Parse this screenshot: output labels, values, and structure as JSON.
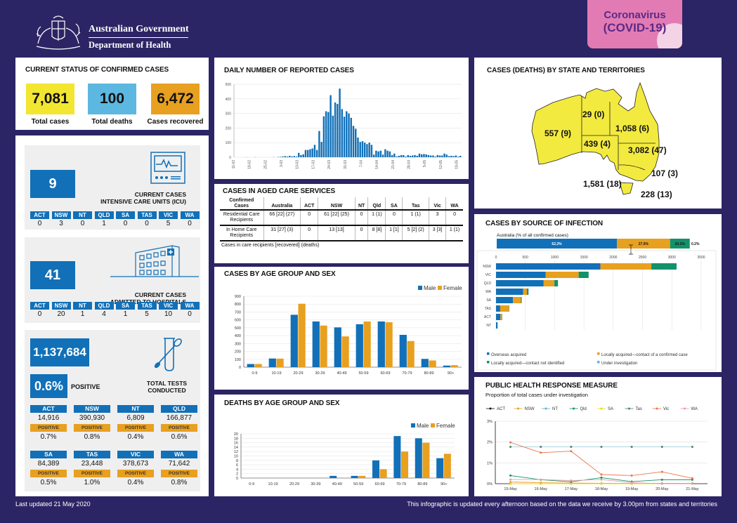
{
  "header": {
    "gov": "Australian Government",
    "dept": "Department of Health",
    "badge_line1": "Coronavirus",
    "badge_line2": "(COVID-19)"
  },
  "status": {
    "title": "CURRENT STATUS OF CONFIRMED CASES",
    "total_cases": "7,081",
    "total_cases_label": "Total cases",
    "total_deaths": "100",
    "total_deaths_label": "Total deaths",
    "recovered": "6,472",
    "recovered_label": "Cases recovered"
  },
  "colors": {
    "background": "#2b2565",
    "blue": "#1170b8",
    "yellow": "#f2e631",
    "light_blue": "#5cb8e0",
    "orange": "#e8a020",
    "map_fill": "#f3ea3f",
    "badge": "#e27bb4"
  },
  "icu": {
    "value": "9",
    "caption1": "CURRENT CASES",
    "caption2": "INTENSIVE CARE UNITS (ICU)",
    "states": [
      {
        "s": "ACT",
        "v": "0"
      },
      {
        "s": "NSW",
        "v": "3"
      },
      {
        "s": "NT",
        "v": "0"
      },
      {
        "s": "QLD",
        "v": "1"
      },
      {
        "s": "SA",
        "v": "0"
      },
      {
        "s": "TAS",
        "v": "0"
      },
      {
        "s": "VIC",
        "v": "5"
      },
      {
        "s": "WA",
        "v": "0"
      }
    ]
  },
  "hospital": {
    "value": "41",
    "caption1": "CURRENT CASES",
    "caption2": "ADMITTED TO HOSPITALS",
    "states": [
      {
        "s": "ACT",
        "v": "0"
      },
      {
        "s": "NSW",
        "v": "20"
      },
      {
        "s": "NT",
        "v": "1"
      },
      {
        "s": "QLD",
        "v": "4"
      },
      {
        "s": "SA",
        "v": "1"
      },
      {
        "s": "TAS",
        "v": "5"
      },
      {
        "s": "VIC",
        "v": "10"
      },
      {
        "s": "WA",
        "v": "0"
      }
    ]
  },
  "tests": {
    "value": "1,137,684",
    "positive": "0.6%",
    "positive_label": "POSITIVE",
    "caption1": "TOTAL TESTS",
    "caption2": "CONDUCTED",
    "positive_tag": "POSITIVE",
    "states": [
      {
        "s": "ACT",
        "v": "14,916",
        "p": "0.7%"
      },
      {
        "s": "NSW",
        "v": "390,930",
        "p": "0.8%"
      },
      {
        "s": "NT",
        "v": "6,809",
        "p": "0.4%"
      },
      {
        "s": "QLD",
        "v": "166,877",
        "p": "0.6%"
      },
      {
        "s": "SA",
        "v": "84,389",
        "p": "0.5%"
      },
      {
        "s": "TAS",
        "v": "23,448",
        "p": "1.0%"
      },
      {
        "s": "VIC",
        "v": "378,673",
        "p": "0.4%"
      },
      {
        "s": "WA",
        "v": "71,642",
        "p": "0.8%"
      }
    ]
  },
  "aged": {
    "title": "CASES IN AGED CARE SERVICES",
    "headers": [
      "Confirmed Cases",
      "Australia",
      "ACT",
      "NSW",
      "NT",
      "Qld",
      "SA",
      "Tas",
      "Vic",
      "WA"
    ],
    "rows": [
      {
        "label": "Residential Care Recipients",
        "cells": [
          "66 [22] (27)",
          "0",
          "61 [22] (25)",
          "0",
          "1 (1)",
          "0",
          "1 (1)",
          "3",
          "0"
        ]
      },
      {
        "label": "In Home Care Recipients",
        "cells": [
          "31 [27] (3)",
          "0",
          "13 [13]",
          "0",
          "8 [8]",
          "1 [1]",
          "5 [2] (2)",
          "3 [3]",
          "1 (1)"
        ]
      }
    ],
    "footnote": "Cases in care recipients [recovered] (deaths)"
  },
  "map": {
    "title": "CASES (DEATHS) BY STATE AND TERRITORIES",
    "states": [
      {
        "s": "WA",
        "label": "557 (9)"
      },
      {
        "s": "NT",
        "label": "29 (0)"
      },
      {
        "s": "QLD",
        "label": "1,058 (6)"
      },
      {
        "s": "SA",
        "label": "439 (4)"
      },
      {
        "s": "NSW",
        "label": "3,082 (47)"
      },
      {
        "s": "ACT",
        "label": "107 (3)"
      },
      {
        "s": "VIC",
        "label": "1,581 (18)"
      },
      {
        "s": "TAS",
        "label": "228 (13)"
      }
    ]
  },
  "footer": {
    "updated": "Last updated 21 May 2020",
    "note": "This infographic is updated every afternoon based on the data we receive by 3.00pm from states and territories"
  },
  "chart_data": [
    {
      "id": "daily",
      "type": "bar",
      "title": "DAILY NUMBER OF REPORTED CASES",
      "ylim": [
        0,
        500
      ],
      "yticks": [
        0,
        100,
        200,
        300,
        400,
        500
      ],
      "grid": true,
      "color": "#1170b8",
      "x": [
        "11-02",
        "12-02",
        "13-02",
        "14-02",
        "15-02",
        "16-02",
        "17-02",
        "18-02",
        "19-02",
        "20-02",
        "21-02",
        "22-02",
        "23-02",
        "24-02",
        "25-02",
        "26-02",
        "27-02",
        "28-02",
        "29-02",
        "1-03",
        "2-03",
        "3-03",
        "4-03",
        "5-03",
        "6-03",
        "7-03",
        "8-03",
        "9-03",
        "10-03",
        "11-03",
        "12-03",
        "13-03",
        "14-03",
        "15-03",
        "16-03",
        "17-03",
        "18-03",
        "19-03",
        "20-03",
        "21-03",
        "22-03",
        "23-03",
        "24-03",
        "25-03",
        "26-03",
        "27-03",
        "28-03",
        "29-03",
        "30-03",
        "31-03",
        "1-04",
        "2-04",
        "3-04",
        "4-04",
        "5-04",
        "6-04",
        "7-04",
        "8-04",
        "9-04",
        "10-04",
        "11-04",
        "12-04",
        "13-04",
        "14-04",
        "15-04",
        "16-04",
        "17-04",
        "18-04",
        "19-04",
        "20-04",
        "21-04",
        "22-04",
        "23-04",
        "24-04",
        "25-04",
        "26-04",
        "27-04",
        "28-04",
        "29-04",
        "30-04",
        "1-05",
        "2-05",
        "3-05",
        "4-05",
        "5-05",
        "6-05",
        "7-05",
        "8-05",
        "9-05",
        "10-05",
        "11-05",
        "12-05",
        "13-05",
        "14-05",
        "15-05",
        "16-05",
        "17-05",
        "18-05",
        "19-05",
        "20-05"
      ],
      "values": [
        0,
        0,
        0,
        0,
        0,
        1,
        0,
        0,
        0,
        1,
        0,
        0,
        0,
        0,
        0,
        0,
        0,
        1,
        0,
        2,
        3,
        5,
        8,
        5,
        10,
        6,
        8,
        5,
        30,
        15,
        20,
        50,
        50,
        55,
        60,
        85,
        50,
        180,
        105,
        280,
        315,
        310,
        425,
        285,
        375,
        365,
        470,
        330,
        278,
        315,
        300,
        270,
        215,
        195,
        135,
        105,
        110,
        100,
        90,
        100,
        85,
        18,
        45,
        40,
        45,
        18,
        55,
        45,
        40,
        15,
        25,
        5,
        10,
        15,
        15,
        5,
        15,
        10,
        12,
        15,
        10,
        25,
        20,
        22,
        20,
        15,
        12,
        12,
        5,
        15,
        12,
        12,
        25,
        18,
        8,
        10,
        8,
        12,
        5,
        10
      ],
      "xticks": [
        "11-02",
        "18-02",
        "25-02",
        "3-03",
        "10-03",
        "17-03",
        "24-03",
        "31-03",
        "7-04",
        "14-04",
        "21-04",
        "28-04",
        "5-05",
        "12-05",
        "19-05"
      ]
    },
    {
      "id": "age",
      "type": "bar",
      "title": "CASES BY AGE GROUP AND SEX",
      "ylim": [
        0,
        900
      ],
      "yticks": [
        0,
        100,
        200,
        300,
        400,
        500,
        600,
        700,
        800,
        900
      ],
      "legend": "top-right",
      "categories": [
        "0-9",
        "10-19",
        "20-29",
        "30-39",
        "40-49",
        "50-59",
        "60-69",
        "70-79",
        "80-89",
        "90+"
      ],
      "series": [
        {
          "name": "Male",
          "color": "#1170b8",
          "values": [
            40,
            110,
            665,
            580,
            505,
            545,
            580,
            410,
            105,
            20
          ]
        },
        {
          "name": "Female",
          "color": "#e8a020",
          "values": [
            40,
            108,
            805,
            528,
            390,
            580,
            570,
            332,
            85,
            25
          ]
        }
      ]
    },
    {
      "id": "deaths",
      "type": "bar",
      "title": "DEATHS BY AGE GROUP AND SEX",
      "ylim": [
        0,
        20
      ],
      "yticks": [
        0,
        2,
        4,
        6,
        8,
        10,
        12,
        14,
        16,
        18,
        20
      ],
      "legend": "top-right",
      "categories": [
        "0-9",
        "10-19",
        "20-29",
        "30-39",
        "40-49",
        "50-59",
        "60-69",
        "70-79",
        "80-89",
        "90+"
      ],
      "series": [
        {
          "name": "Male",
          "color": "#1170b8",
          "values": [
            0,
            0,
            0,
            0,
            1,
            1,
            8,
            19,
            18,
            9
          ]
        },
        {
          "name": "Female",
          "color": "#e8a020",
          "values": [
            0,
            0,
            0,
            0,
            0,
            1,
            4,
            12,
            16,
            11
          ]
        }
      ]
    },
    {
      "id": "source",
      "type": "bar",
      "orientation": "horizontal",
      "stacked": true,
      "title": "CASES BY SOURCE OF INFECTION",
      "summary_label": "Australia (% of all confirmed cases)",
      "summary": [
        "62.2%",
        "27.5%",
        "10.1%",
        "0.2%"
      ],
      "summary_values": [
        62.2,
        27.5,
        10.1,
        0.2
      ],
      "xlim": [
        0,
        3500
      ],
      "xticks": [
        0,
        500,
        1000,
        1500,
        2000,
        2500,
        3000,
        3500
      ],
      "legend": "bottom",
      "categories": [
        "NSW",
        "VIC",
        "QLD",
        "WA",
        "SA",
        "TAS",
        "ACT",
        "NT"
      ],
      "series": [
        {
          "name": "Overseas acquired",
          "color": "#1170b8",
          "values": [
            1780,
            845,
            813,
            464,
            290,
            71,
            75,
            25
          ]
        },
        {
          "name": "Locally acquired—contact of a confirmed case",
          "color": "#e8a020",
          "values": [
            870,
            565,
            183,
            64,
            135,
            150,
            28,
            4
          ]
        },
        {
          "name": "Locally acquired—contact not identified",
          "color": "#12916a",
          "values": [
            430,
            170,
            60,
            25,
            12,
            5,
            4,
            0
          ]
        },
        {
          "name": "Under investigation",
          "color": "#5cb8e0",
          "values": [
            2,
            1,
            2,
            4,
            2,
            2,
            0,
            0
          ]
        }
      ]
    },
    {
      "id": "phrm",
      "type": "line",
      "title": "PUBLIC HEALTH RESPONSE MEASURE",
      "subtitle": "Proportion of total cases under investigation",
      "ylim": [
        0,
        3
      ],
      "yticks": [
        "0%",
        "1%",
        "2%",
        "3%"
      ],
      "legend": "top",
      "grid": true,
      "categories": [
        "15-May",
        "16-May",
        "17-May",
        "18-May",
        "19-May",
        "20-May",
        "21-May"
      ],
      "series": [
        {
          "name": "ACT",
          "color": "#111111",
          "values": [
            0,
            0,
            0,
            0,
            0,
            0,
            0
          ]
        },
        {
          "name": "NSW",
          "color": "#e8a020",
          "values": [
            0.08,
            0.05,
            0.03,
            0.02,
            0.02,
            0.02,
            0.02
          ]
        },
        {
          "name": "NT",
          "color": "#5fb0d9",
          "values": [
            0,
            0,
            0,
            0,
            0,
            0,
            0
          ]
        },
        {
          "name": "Qld",
          "color": "#12916a",
          "values": [
            0.39,
            0.19,
            0.09,
            0.29,
            0.1,
            0.19,
            0.19
          ]
        },
        {
          "name": "SA",
          "color": "#e6dc10",
          "values": [
            0,
            0,
            0,
            0,
            0,
            0,
            0
          ]
        },
        {
          "name": "Tas",
          "color": "#4f7f6f",
          "values": [
            1.77,
            1.77,
            1.77,
            1.77,
            1.77,
            1.77,
            1.77
          ]
        },
        {
          "name": "Vic",
          "color": "#e8764a",
          "values": [
            1.98,
            1.49,
            1.56,
            0.44,
            0.39,
            0.57,
            0.26
          ]
        },
        {
          "name": "WA",
          "color": "#e89aa8",
          "values": [
            0.2,
            0.2,
            0.15,
            0.2,
            0.05,
            0,
            0
          ]
        }
      ]
    }
  ]
}
